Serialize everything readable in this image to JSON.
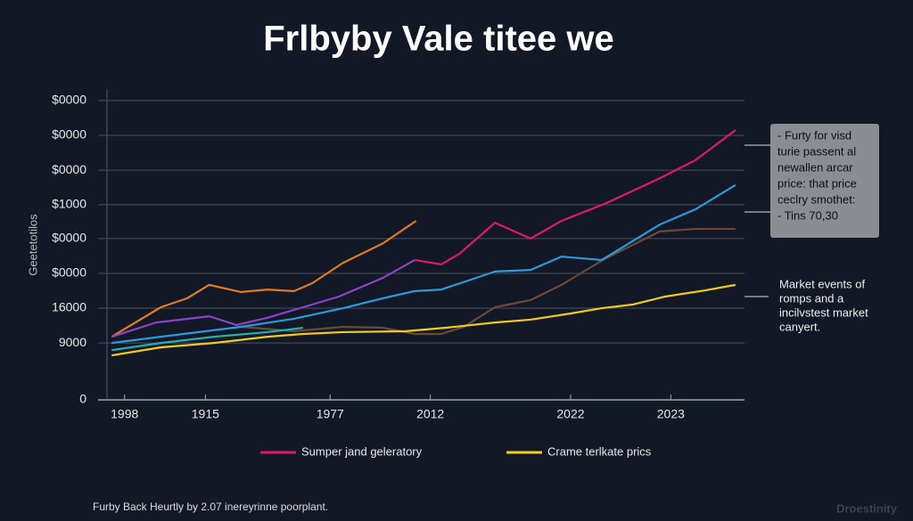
{
  "chart_data": {
    "type": "line",
    "title": "Frlbyby Vale titee we",
    "y_label": "Geetetotilos",
    "xlim": [
      0,
      100
    ],
    "xticks": [
      {
        "value": 4.1,
        "label": "1998"
      },
      {
        "value": 16.6,
        "label": "1915"
      },
      {
        "value": 35.9,
        "label": "1977"
      },
      {
        "value": 51.4,
        "label": "2012"
      },
      {
        "value": 73.1,
        "label": "2022"
      },
      {
        "value": 88.6,
        "label": "2023"
      }
    ],
    "ylim": [
      0,
      100
    ],
    "yticks": [
      0,
      {
        "value": 18.3,
        "label": "9000"
      },
      {
        "value": 29.5,
        "label": "16000"
      },
      {
        "value": 40.7,
        "label": "$0000"
      },
      {
        "value": 51.9,
        "label": "$0000"
      },
      {
        "value": 62.8,
        "label": "$1000"
      },
      {
        "value": 73.9,
        "label": "$0000"
      },
      {
        "value": 85.1,
        "label": "$0000"
      },
      {
        "value": 96.3,
        "label": "$0000"
      }
    ],
    "grid": true,
    "series": [
      {
        "color": "#e07a1f",
        "x": [
          2.1,
          9.7,
          13.8,
          17.2,
          22.1,
          26.2,
          30.3,
          33.1,
          37.9,
          44.1,
          49.2
        ],
        "values": [
          20.3,
          29.8,
          32.7,
          37.0,
          34.7,
          35.5,
          35.0,
          37.5,
          44.1,
          50.4,
          57.6
        ]
      },
      {
        "color": "#6b4a3a",
        "x": [
          22.1,
          30.3,
          37.9,
          44.1,
          49.0,
          53.1,
          56.6,
          61.4,
          66.9,
          71.7,
          78.6,
          86.9,
          92.4,
          98.6
        ],
        "values": [
          23.5,
          22.1,
          23.5,
          23.2,
          21.2,
          21.2,
          23.5,
          29.8,
          32.1,
          37.0,
          45.6,
          54.2,
          55.0,
          55.0
        ]
      },
      {
        "color": "#8a44c8",
        "x": [
          2.1,
          9.0,
          17.2,
          21.4,
          26.2,
          31.7,
          37.2,
          44.1,
          49.0
        ],
        "values": [
          20.3,
          24.9,
          26.9,
          24.1,
          26.4,
          29.8,
          33.2,
          39.3,
          45.0
        ]
      },
      {
        "name": "Sumper jand geleratory",
        "color": "#e0186a",
        "x": [
          49.0,
          53.1,
          55.9,
          61.4,
          66.9,
          71.7,
          78.6,
          86.9,
          92.4,
          98.6
        ],
        "values": [
          45.0,
          43.6,
          47.0,
          57.0,
          51.9,
          57.6,
          63.3,
          71.3,
          77.1,
          86.8
        ]
      },
      {
        "color": "#2a9ad8",
        "x": [
          2.1,
          9.7,
          22.1,
          30.3,
          37.9,
          44.1,
          49.0,
          53.1,
          61.4,
          66.9,
          71.7,
          77.9,
          86.9,
          92.4,
          98.6
        ],
        "values": [
          18.3,
          20.3,
          23.5,
          26.1,
          29.5,
          32.7,
          35.0,
          35.5,
          41.3,
          41.8,
          46.1,
          45.0,
          56.4,
          61.3,
          69.1
        ]
      },
      {
        "color": "#1fb3b0",
        "x": [
          2.1,
          9.7,
          17.9,
          26.2,
          31.7
        ],
        "values": [
          16.0,
          18.3,
          20.3,
          21.8,
          23.2
        ]
      },
      {
        "name": "Crame terlkate prics",
        "color": "#f2cc1d",
        "x": [
          2.1,
          9.7,
          17.9,
          26.2,
          31.7,
          37.9,
          47.6,
          53.8,
          61.4,
          66.9,
          73.1,
          77.9,
          82.8,
          87.6,
          93.8,
          98.6
        ],
        "values": [
          14.3,
          16.9,
          18.3,
          20.3,
          21.2,
          21.8,
          22.1,
          23.2,
          24.9,
          25.8,
          27.8,
          29.5,
          30.7,
          33.2,
          35.2,
          37.0
        ]
      }
    ],
    "annotations": [
      {
        "lines": [
          "- Furty for visd",
          "turie passent al",
          "newallen arcar",
          "price: that price",
          "ceclry smothet:",
          "- Tins 70,30"
        ]
      },
      {
        "lines": [
          "Market events of",
          "romps and a",
          "incilvstest market",
          "canyert."
        ]
      }
    ],
    "footer": "Furby Back Heurtly by 2.07 inereyrinne poorplant.",
    "watermark": "Droestinity"
  }
}
